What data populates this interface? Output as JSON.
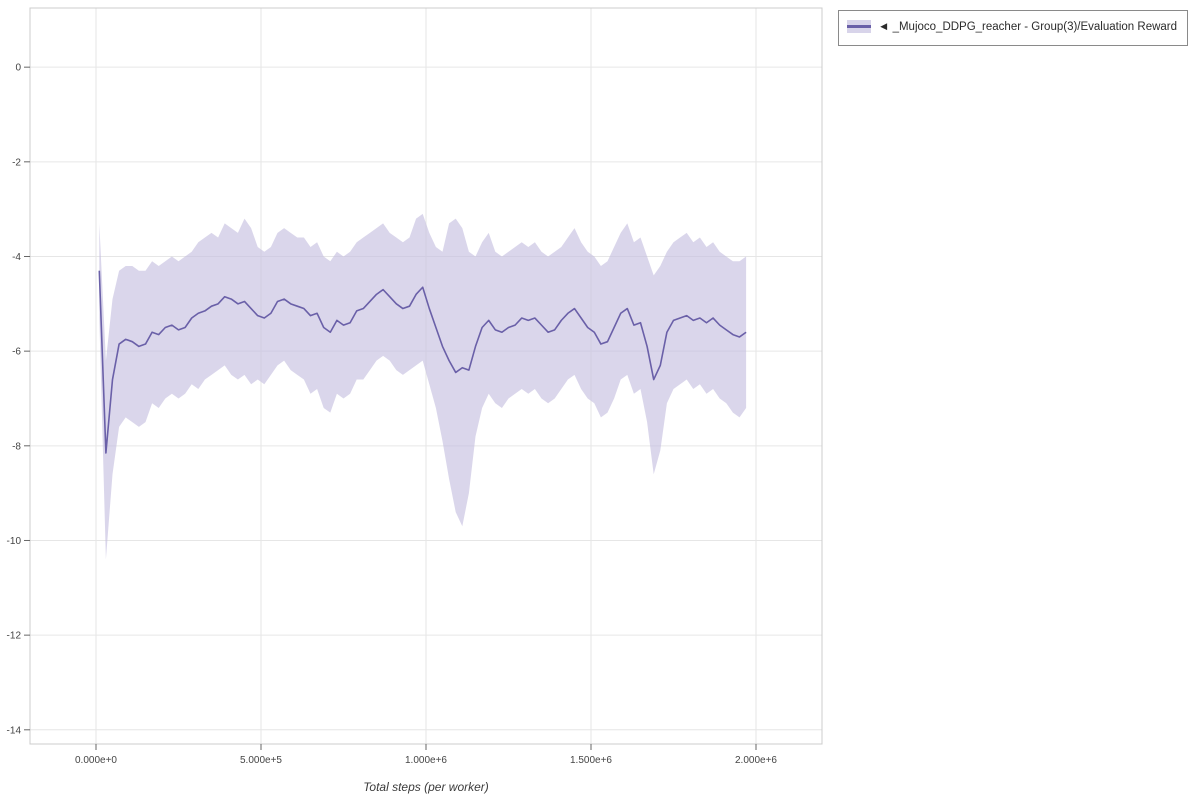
{
  "legend": {
    "label": "◄ _Mujoco_DDPG_reacher - Group(3)/Evaluation Reward"
  },
  "chart_data": {
    "type": "line",
    "title": "",
    "xlabel": "Total steps (per worker)",
    "ylabel": "",
    "xlim": [
      -200000,
      2200000
    ],
    "ylim": [
      -14.3,
      1.25
    ],
    "grid": true,
    "legend_position": "top-right-outside",
    "x_tick_values": [
      0,
      500000,
      1000000,
      1500000,
      2000000
    ],
    "x_tick_labels": [
      "0.000e+0",
      "5.000e+5",
      "1.000e+6",
      "1.500e+6",
      "2.000e+6"
    ],
    "y_tick_values": [
      0,
      -2,
      -4,
      -6,
      -8,
      -10,
      -12,
      -14
    ],
    "y_tick_labels": [
      "0",
      "-2",
      "-4",
      "-6",
      "-8",
      "-10",
      "-12",
      "-14"
    ],
    "colors": {
      "line": "#6a60a8",
      "band": "#c3bddf",
      "grid": "#e6e6e6",
      "axis_box": "#cccccc",
      "tick": "#666666",
      "tick_text": "#444444"
    },
    "series": [
      {
        "name": "Evaluation Reward (mean with min/max band)",
        "x": [
          10000,
          30000,
          50000,
          70000,
          90000,
          110000,
          130000,
          150000,
          170000,
          190000,
          210000,
          230000,
          250000,
          270000,
          290000,
          310000,
          330000,
          350000,
          370000,
          390000,
          410000,
          430000,
          450000,
          470000,
          490000,
          510000,
          530000,
          550000,
          570000,
          590000,
          610000,
          630000,
          650000,
          670000,
          690000,
          710000,
          730000,
          750000,
          770000,
          790000,
          810000,
          830000,
          850000,
          870000,
          890000,
          910000,
          930000,
          950000,
          970000,
          990000,
          1010000,
          1030000,
          1050000,
          1070000,
          1090000,
          1110000,
          1130000,
          1150000,
          1170000,
          1190000,
          1210000,
          1230000,
          1250000,
          1270000,
          1290000,
          1310000,
          1330000,
          1350000,
          1370000,
          1390000,
          1410000,
          1430000,
          1450000,
          1470000,
          1490000,
          1510000,
          1530000,
          1550000,
          1570000,
          1590000,
          1610000,
          1630000,
          1650000,
          1670000,
          1690000,
          1710000,
          1730000,
          1750000,
          1770000,
          1790000,
          1810000,
          1830000,
          1850000,
          1870000,
          1890000,
          1910000,
          1930000,
          1950000,
          1970000
        ],
        "mean": [
          -4.3,
          -8.15,
          -6.6,
          -5.85,
          -5.75,
          -5.8,
          -5.9,
          -5.85,
          -5.6,
          -5.65,
          -5.5,
          -5.45,
          -5.55,
          -5.5,
          -5.3,
          -5.2,
          -5.15,
          -5.05,
          -5.0,
          -4.85,
          -4.9,
          -5.0,
          -4.95,
          -5.1,
          -5.25,
          -5.3,
          -5.2,
          -4.95,
          -4.9,
          -5.0,
          -5.05,
          -5.1,
          -5.25,
          -5.2,
          -5.5,
          -5.6,
          -5.35,
          -5.45,
          -5.4,
          -5.15,
          -5.1,
          -4.95,
          -4.8,
          -4.7,
          -4.85,
          -5.0,
          -5.1,
          -5.05,
          -4.8,
          -4.65,
          -5.1,
          -5.5,
          -5.9,
          -6.2,
          -6.45,
          -6.35,
          -6.4,
          -5.9,
          -5.5,
          -5.35,
          -5.55,
          -5.6,
          -5.5,
          -5.45,
          -5.3,
          -5.35,
          -5.3,
          -5.45,
          -5.6,
          -5.55,
          -5.35,
          -5.2,
          -5.1,
          -5.3,
          -5.5,
          -5.6,
          -5.85,
          -5.8,
          -5.5,
          -5.2,
          -5.1,
          -5.45,
          -5.4,
          -5.9,
          -6.6,
          -6.3,
          -5.6,
          -5.35,
          -5.3,
          -5.25,
          -5.35,
          -5.3,
          -5.4,
          -5.3,
          -5.45,
          -5.55,
          -5.65,
          -5.7,
          -5.6
        ],
        "upper": [
          -3.3,
          -6.2,
          -4.9,
          -4.3,
          -4.2,
          -4.2,
          -4.3,
          -4.3,
          -4.1,
          -4.2,
          -4.1,
          -4.0,
          -4.1,
          -4.0,
          -3.9,
          -3.7,
          -3.6,
          -3.5,
          -3.6,
          -3.3,
          -3.4,
          -3.5,
          -3.2,
          -3.4,
          -3.8,
          -3.9,
          -3.8,
          -3.5,
          -3.4,
          -3.5,
          -3.6,
          -3.6,
          -3.8,
          -3.7,
          -4.0,
          -4.1,
          -3.9,
          -4.0,
          -3.9,
          -3.7,
          -3.6,
          -3.5,
          -3.4,
          -3.3,
          -3.5,
          -3.6,
          -3.7,
          -3.6,
          -3.2,
          -3.1,
          -3.5,
          -3.8,
          -3.9,
          -3.3,
          -3.2,
          -3.4,
          -3.9,
          -4.0,
          -3.7,
          -3.5,
          -3.9,
          -4.0,
          -3.9,
          -3.8,
          -3.7,
          -3.8,
          -3.7,
          -3.9,
          -4.0,
          -3.9,
          -3.8,
          -3.6,
          -3.4,
          -3.7,
          -3.9,
          -4.0,
          -4.2,
          -4.1,
          -3.8,
          -3.5,
          -3.3,
          -3.7,
          -3.6,
          -4.0,
          -4.4,
          -4.2,
          -3.9,
          -3.7,
          -3.6,
          -3.5,
          -3.7,
          -3.6,
          -3.8,
          -3.7,
          -3.9,
          -4.0,
          -4.1,
          -4.1,
          -4.0
        ],
        "lower": [
          -5.3,
          -10.4,
          -8.6,
          -7.6,
          -7.4,
          -7.5,
          -7.6,
          -7.5,
          -7.1,
          -7.2,
          -7.0,
          -6.9,
          -7.0,
          -6.9,
          -6.7,
          -6.8,
          -6.6,
          -6.5,
          -6.4,
          -6.3,
          -6.5,
          -6.6,
          -6.5,
          -6.7,
          -6.6,
          -6.7,
          -6.5,
          -6.3,
          -6.2,
          -6.4,
          -6.5,
          -6.6,
          -6.9,
          -6.8,
          -7.2,
          -7.3,
          -6.9,
          -7.0,
          -6.9,
          -6.6,
          -6.6,
          -6.4,
          -6.2,
          -6.1,
          -6.2,
          -6.4,
          -6.5,
          -6.4,
          -6.3,
          -6.2,
          -6.7,
          -7.2,
          -7.9,
          -8.7,
          -9.4,
          -9.7,
          -9.0,
          -7.8,
          -7.2,
          -6.9,
          -7.1,
          -7.2,
          -7.0,
          -6.9,
          -6.8,
          -6.9,
          -6.8,
          -7.0,
          -7.1,
          -7.0,
          -6.8,
          -6.6,
          -6.5,
          -6.8,
          -7.0,
          -7.1,
          -7.4,
          -7.3,
          -7.0,
          -6.6,
          -6.5,
          -6.9,
          -6.8,
          -7.5,
          -8.6,
          -8.1,
          -7.1,
          -6.8,
          -6.7,
          -6.6,
          -6.8,
          -6.7,
          -6.9,
          -6.8,
          -7.0,
          -7.1,
          -7.3,
          -7.4,
          -7.2
        ]
      }
    ]
  }
}
